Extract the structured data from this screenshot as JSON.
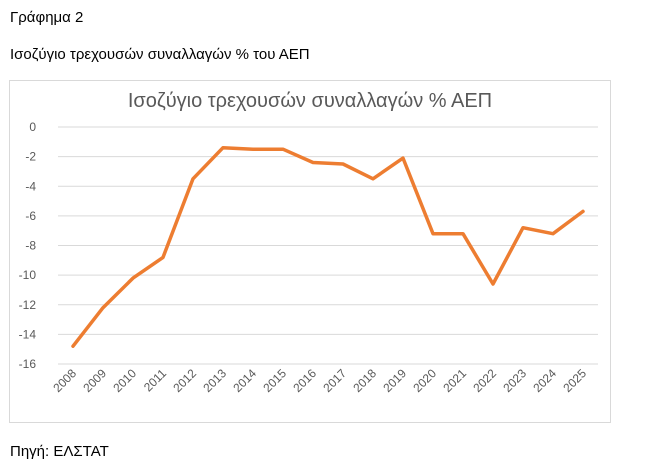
{
  "document": {
    "caption_label": "Γράφημα 2",
    "caption_title": "Ισοζύγιο τρεχουσών συναλλαγών % του ΑΕΠ",
    "source": "Πηγή: ΕΛΣΤΑΤ"
  },
  "chart_data": {
    "type": "line",
    "title": "Ισοζύγιο τρεχουσών συναλλαγών  % ΑΕΠ",
    "xlabel": "",
    "ylabel": "",
    "categories": [
      "2008",
      "2009",
      "2010",
      "2011",
      "2012",
      "2013",
      "2014",
      "2015",
      "2016",
      "2017",
      "2018",
      "2019",
      "2020",
      "2021",
      "2022",
      "2023",
      "2024",
      "2025"
    ],
    "series": [
      {
        "name": "",
        "color": "#ED7D31",
        "values": [
          -14.8,
          -12.2,
          -10.2,
          -8.8,
          -3.5,
          -1.4,
          -1.5,
          -1.5,
          -2.4,
          -2.5,
          -3.5,
          -2.1,
          -7.2,
          -7.2,
          -10.6,
          -6.8,
          -7.2,
          -5.7
        ]
      }
    ],
    "ylim": [
      -16,
      0
    ],
    "yticks": [
      0,
      -2,
      -4,
      -6,
      -8,
      -10,
      -12,
      -14,
      -16
    ],
    "grid": true,
    "legend": "none"
  }
}
